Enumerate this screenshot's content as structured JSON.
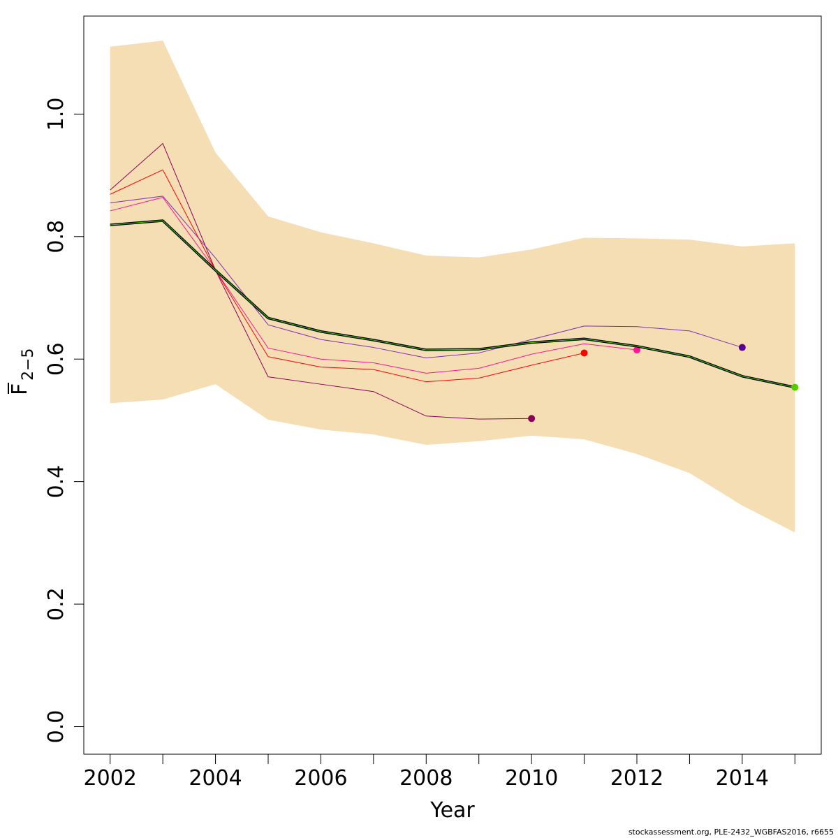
{
  "chart_data": {
    "type": "line",
    "xlabel": "Year",
    "ylabel": {
      "main": "F",
      "sub": "2−5"
    },
    "xlim": [
      2001.5,
      2015.5
    ],
    "ylim": [
      -0.045,
      1.16
    ],
    "x_ticks": [
      "2002",
      "2004",
      "2006",
      "2008",
      "2010",
      "2012",
      "2014"
    ],
    "y_ticks": [
      "0.0",
      "0.2",
      "0.4",
      "0.6",
      "0.8",
      "1.0"
    ],
    "band": {
      "color": "#F5DEB3",
      "x": [
        2002,
        2003,
        2004,
        2005,
        2006,
        2007,
        2008,
        2009,
        2010,
        2011,
        2012,
        2013,
        2014,
        2015
      ],
      "upper": [
        1.11,
        1.12,
        0.937,
        0.833,
        0.807,
        0.789,
        0.769,
        0.766,
        0.779,
        0.798,
        0.797,
        0.795,
        0.784,
        0.789
      ],
      "lower": [
        0.528,
        0.534,
        0.559,
        0.501,
        0.485,
        0.477,
        0.46,
        0.466,
        0.475,
        0.469,
        0.445,
        0.414,
        0.361,
        0.317
      ]
    },
    "series": [
      {
        "color": "#8B005A",
        "end_marker": true,
        "x": [
          2002,
          2003,
          2004,
          2005,
          2006,
          2007,
          2008,
          2009,
          2010
        ],
        "values": [
          0.876,
          0.952,
          0.745,
          0.571,
          0.559,
          0.547,
          0.507,
          0.502,
          0.503
        ]
      },
      {
        "color": "#FF0000",
        "end_marker": true,
        "x": [
          2002,
          2003,
          2004,
          2005,
          2006,
          2007,
          2008,
          2009,
          2010,
          2011
        ],
        "values": [
          0.869,
          0.909,
          0.745,
          0.604,
          0.587,
          0.583,
          0.563,
          0.569,
          0.59,
          0.61
        ]
      },
      {
        "color": "#FF1493",
        "end_marker": true,
        "x": [
          2002,
          2003,
          2004,
          2005,
          2006,
          2007,
          2008,
          2009,
          2010,
          2011,
          2012
        ],
        "values": [
          0.842,
          0.864,
          0.745,
          0.618,
          0.6,
          0.594,
          0.577,
          0.585,
          0.608,
          0.625,
          0.615
        ]
      },
      {
        "color": "#7B2FB8",
        "end_marker": true,
        "marker_color": "#5A0099",
        "x": [
          2002,
          2003,
          2004,
          2005,
          2006,
          2007,
          2008,
          2009,
          2010,
          2011,
          2012,
          2013,
          2014
        ],
        "values": [
          0.855,
          0.866,
          0.765,
          0.656,
          0.632,
          0.619,
          0.602,
          0.61,
          0.632,
          0.654,
          0.653,
          0.646,
          0.619
        ]
      },
      {
        "color": "#000000",
        "width": 3.5,
        "overlay_color": "#44CC00",
        "end_marker": true,
        "marker_color": "#55CC00",
        "x": [
          2002,
          2003,
          2004,
          2005,
          2006,
          2007,
          2008,
          2009,
          2010,
          2011,
          2012,
          2013,
          2014,
          2015
        ],
        "values": [
          0.819,
          0.826,
          0.745,
          0.667,
          0.645,
          0.631,
          0.615,
          0.616,
          0.627,
          0.633,
          0.621,
          0.604,
          0.572,
          0.554
        ]
      }
    ]
  },
  "footer": "stockassessment.org, PLE-2432_WGBFAS2016, r6655"
}
